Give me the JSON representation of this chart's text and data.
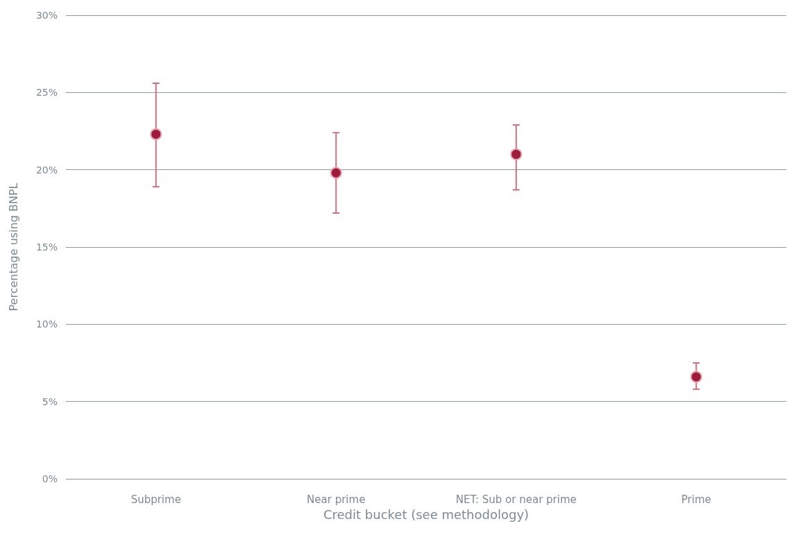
{
  "chart_data": {
    "type": "scatter",
    "xlabel": "Credit bucket (see methodology)",
    "ylabel": "Percentage using BNPL",
    "categories": [
      "Subprime",
      "Near prime",
      "NET: Sub or near prime",
      "Prime"
    ],
    "series": [
      {
        "color": "#9e1b3c",
        "values": [
          22.3,
          19.8,
          21.0,
          6.6
        ],
        "errors": [
          [
            18.9,
            25.6
          ],
          [
            17.2,
            22.4
          ],
          [
            18.7,
            22.9
          ],
          [
            5.8,
            7.5
          ]
        ]
      }
    ],
    "ylim": [
      0,
      30
    ],
    "yticks": [
      {
        "value": 0,
        "label": "0%"
      },
      {
        "value": 5,
        "label": "5%"
      },
      {
        "value": 10,
        "label": "10%"
      },
      {
        "value": 15,
        "label": "15%"
      },
      {
        "value": 20,
        "label": "20%"
      },
      {
        "value": 25,
        "label": "25%"
      },
      {
        "value": 30,
        "label": "30%"
      }
    ],
    "grid": "y",
    "marker": "circle"
  }
}
